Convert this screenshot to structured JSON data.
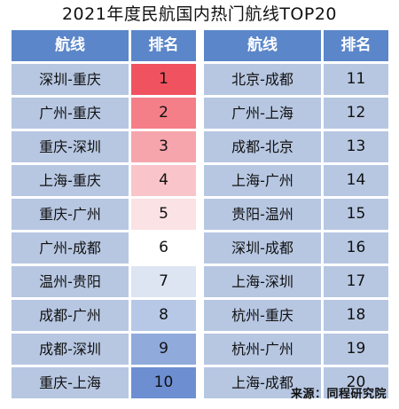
{
  "title": "2021年度民航国内热门航线TOP20",
  "footer": "来源：同程研究院",
  "colors": {
    "header_bg": "#5B86C9",
    "route_cell_bg": "#B7C7E2",
    "right_rank_bg": "#B7C7E2",
    "left_rank_scale": [
      "#F0535F",
      "#F47F88",
      "#F7A5AC",
      "#F9C5CA",
      "#FBE2E4",
      "#FFFFFF",
      "#DDE5F2",
      "#B6C8E6",
      "#8FAADB",
      "#6D8FD2"
    ]
  },
  "chart_data": {
    "type": "table",
    "columns": [
      "航线",
      "排名"
    ],
    "rows": [
      {
        "route": "深圳-重庆",
        "rank": 1
      },
      {
        "route": "广州-重庆",
        "rank": 2
      },
      {
        "route": "重庆-深圳",
        "rank": 3
      },
      {
        "route": "上海-重庆",
        "rank": 4
      },
      {
        "route": "重庆-广州",
        "rank": 5
      },
      {
        "route": "广州-成都",
        "rank": 6
      },
      {
        "route": "温州-贵阳",
        "rank": 7
      },
      {
        "route": "成都-广州",
        "rank": 8
      },
      {
        "route": "成都-深圳",
        "rank": 9
      },
      {
        "route": "重庆-上海",
        "rank": 10
      },
      {
        "route": "北京-成都",
        "rank": 11
      },
      {
        "route": "广州-上海",
        "rank": 12
      },
      {
        "route": "成都-北京",
        "rank": 13
      },
      {
        "route": "上海-广州",
        "rank": 14
      },
      {
        "route": "贵阳-温州",
        "rank": 15
      },
      {
        "route": "深圳-成都",
        "rank": 16
      },
      {
        "route": "上海-深圳",
        "rank": 17
      },
      {
        "route": "杭州-重庆",
        "rank": 18
      },
      {
        "route": "杭州-广州",
        "rank": 19
      },
      {
        "route": "上海-成都",
        "rank": 20
      }
    ]
  }
}
